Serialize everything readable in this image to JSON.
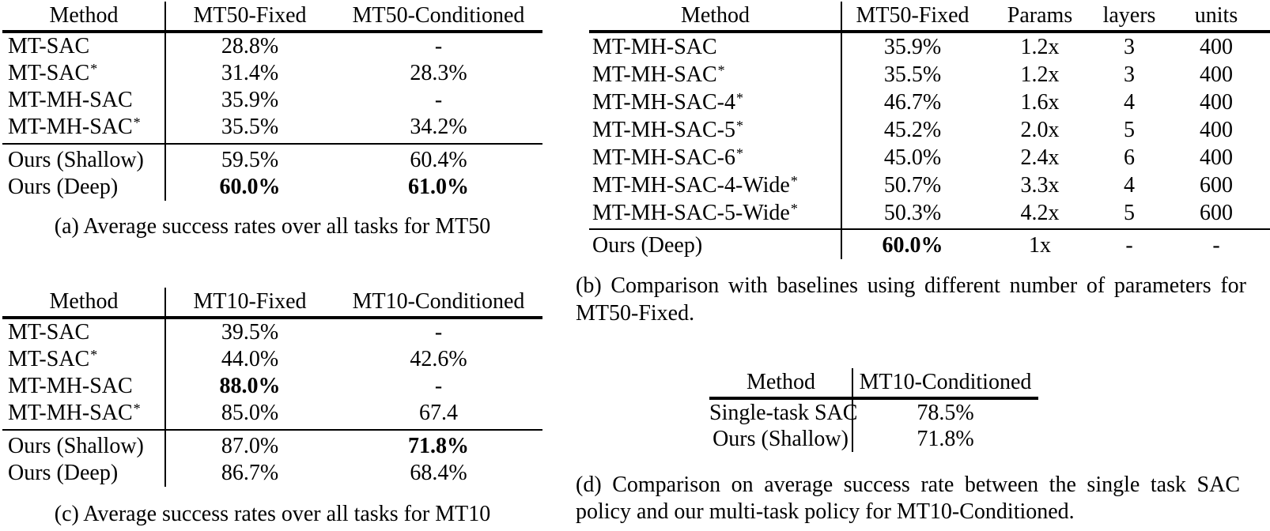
{
  "page": {
    "background": "#ffffff",
    "text_color": "#000000"
  },
  "tables": {
    "a": {
      "headers": [
        "Method",
        "MT50-Fixed",
        "MT50-Conditioned"
      ],
      "rows": [
        {
          "method": "MT-SAC",
          "star": "",
          "cells": [
            {
              "text": "28.8%"
            },
            {
              "text": "-"
            }
          ]
        },
        {
          "method": "MT-SAC",
          "star": "*",
          "cells": [
            {
              "text": "31.4%"
            },
            {
              "text": "28.3%"
            }
          ]
        },
        {
          "method": "MT-MH-SAC",
          "star": "",
          "cells": [
            {
              "text": "35.9%"
            },
            {
              "text": "-"
            }
          ]
        },
        {
          "method": "MT-MH-SAC",
          "star": "*",
          "cells": [
            {
              "text": "35.5%"
            },
            {
              "text": "34.2%"
            }
          ]
        },
        {
          "method": "Ours (Shallow)",
          "star": "",
          "cells": [
            {
              "text": "59.5%"
            },
            {
              "text": "60.4%"
            }
          ]
        },
        {
          "method": "Ours (Deep)",
          "star": "",
          "cells": [
            {
              "text": "60.0%",
              "bold": true
            },
            {
              "text": "61.0%",
              "bold": true
            }
          ]
        }
      ],
      "caption": "(a) Average success rates over all tasks for MT50"
    },
    "b": {
      "headers": [
        "Method",
        "MT50-Fixed",
        "Params",
        "layers",
        "units"
      ],
      "rows": [
        {
          "method": "MT-MH-SAC",
          "star": "",
          "cells": [
            {
              "text": "35.9%"
            },
            {
              "text": "1.2x"
            },
            {
              "text": "3"
            },
            {
              "text": "400"
            }
          ]
        },
        {
          "method": "MT-MH-SAC",
          "star": "*",
          "cells": [
            {
              "text": "35.5%"
            },
            {
              "text": "1.2x"
            },
            {
              "text": "3"
            },
            {
              "text": "400"
            }
          ]
        },
        {
          "method": "MT-MH-SAC-4",
          "star": "*",
          "cells": [
            {
              "text": "46.7%"
            },
            {
              "text": "1.6x"
            },
            {
              "text": "4"
            },
            {
              "text": "400"
            }
          ]
        },
        {
          "method": "MT-MH-SAC-5",
          "star": "*",
          "cells": [
            {
              "text": "45.2%"
            },
            {
              "text": "2.0x"
            },
            {
              "text": "5"
            },
            {
              "text": "400"
            }
          ]
        },
        {
          "method": "MT-MH-SAC-6",
          "star": "*",
          "cells": [
            {
              "text": "45.0%"
            },
            {
              "text": "2.4x"
            },
            {
              "text": "6"
            },
            {
              "text": "400"
            }
          ]
        },
        {
          "method": "MT-MH-SAC-4-Wide",
          "star": "*",
          "cells": [
            {
              "text": "50.7%"
            },
            {
              "text": "3.3x"
            },
            {
              "text": "4"
            },
            {
              "text": "600"
            }
          ]
        },
        {
          "method": "MT-MH-SAC-5-Wide",
          "star": "*",
          "cells": [
            {
              "text": "50.3%"
            },
            {
              "text": "4.2x"
            },
            {
              "text": "5"
            },
            {
              "text": "600"
            }
          ]
        },
        {
          "method": "Ours (Deep)",
          "star": "",
          "cells": [
            {
              "text": "60.0%",
              "bold": true
            },
            {
              "text": "1x"
            },
            {
              "text": "-"
            },
            {
              "text": "-"
            }
          ]
        }
      ],
      "caption": "(b) Comparison with baselines using different number of parameters for MT50-Fixed."
    },
    "c": {
      "headers": [
        "Method",
        "MT10-Fixed",
        "MT10-Conditioned"
      ],
      "rows": [
        {
          "method": "MT-SAC",
          "star": "",
          "cells": [
            {
              "text": "39.5%"
            },
            {
              "text": "-"
            }
          ]
        },
        {
          "method": "MT-SAC",
          "star": "*",
          "cells": [
            {
              "text": "44.0%"
            },
            {
              "text": "42.6%"
            }
          ]
        },
        {
          "method": "MT-MH-SAC",
          "star": "",
          "cells": [
            {
              "text": "88.0%",
              "bold": true
            },
            {
              "text": "-"
            }
          ]
        },
        {
          "method": "MT-MH-SAC",
          "star": "*",
          "cells": [
            {
              "text": "85.0%"
            },
            {
              "text": "67.4"
            }
          ]
        },
        {
          "method": "Ours (Shallow)",
          "star": "",
          "cells": [
            {
              "text": "87.0%"
            },
            {
              "text": "71.8%",
              "bold": true
            }
          ]
        },
        {
          "method": "Ours (Deep)",
          "star": "",
          "cells": [
            {
              "text": "86.7%"
            },
            {
              "text": "68.4%"
            }
          ]
        }
      ],
      "caption": "(c) Average success rates over all tasks for MT10"
    },
    "d": {
      "headers": [
        "Method",
        "MT10-Conditioned"
      ],
      "rows": [
        {
          "method": "Single-task SAC",
          "star": "",
          "cells": [
            {
              "text": "78.5%"
            }
          ]
        },
        {
          "method": "Ours (Shallow)",
          "star": "",
          "cells": [
            {
              "text": "71.8%"
            }
          ]
        }
      ],
      "caption": "(d) Comparison on average success rate between the single task SAC policy and our multi-task policy for MT10-Conditioned."
    }
  }
}
